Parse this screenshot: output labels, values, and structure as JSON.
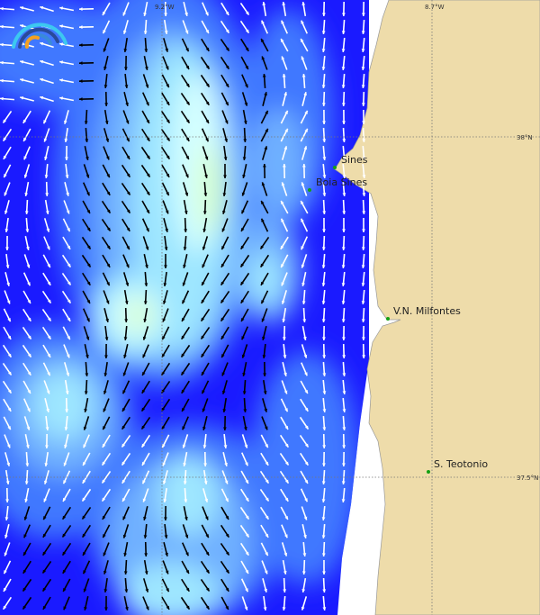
{
  "map": {
    "graticule": {
      "lon_labels": [
        "9.2°W",
        "8.7°W"
      ],
      "lat_labels": [
        "38°N",
        "37.5°N"
      ]
    },
    "places": [
      {
        "name": "Sines"
      },
      {
        "name": "Boia Sines"
      },
      {
        "name": "V.N. Milfontes"
      },
      {
        "name": "S. Teotonio"
      }
    ],
    "colors": {
      "land": "#eedcaa",
      "deep_ocean": "#1a1aff",
      "mid_ocean": "#3f78ff",
      "light_ocean": "#6fb0ff",
      "pale_ocean": "#9ee6ff",
      "palest_ocean": "#d4ffff",
      "peak": "#d8ffc8",
      "place_marker": "#14a014"
    },
    "logo": "rainbow-arc-logo"
  }
}
